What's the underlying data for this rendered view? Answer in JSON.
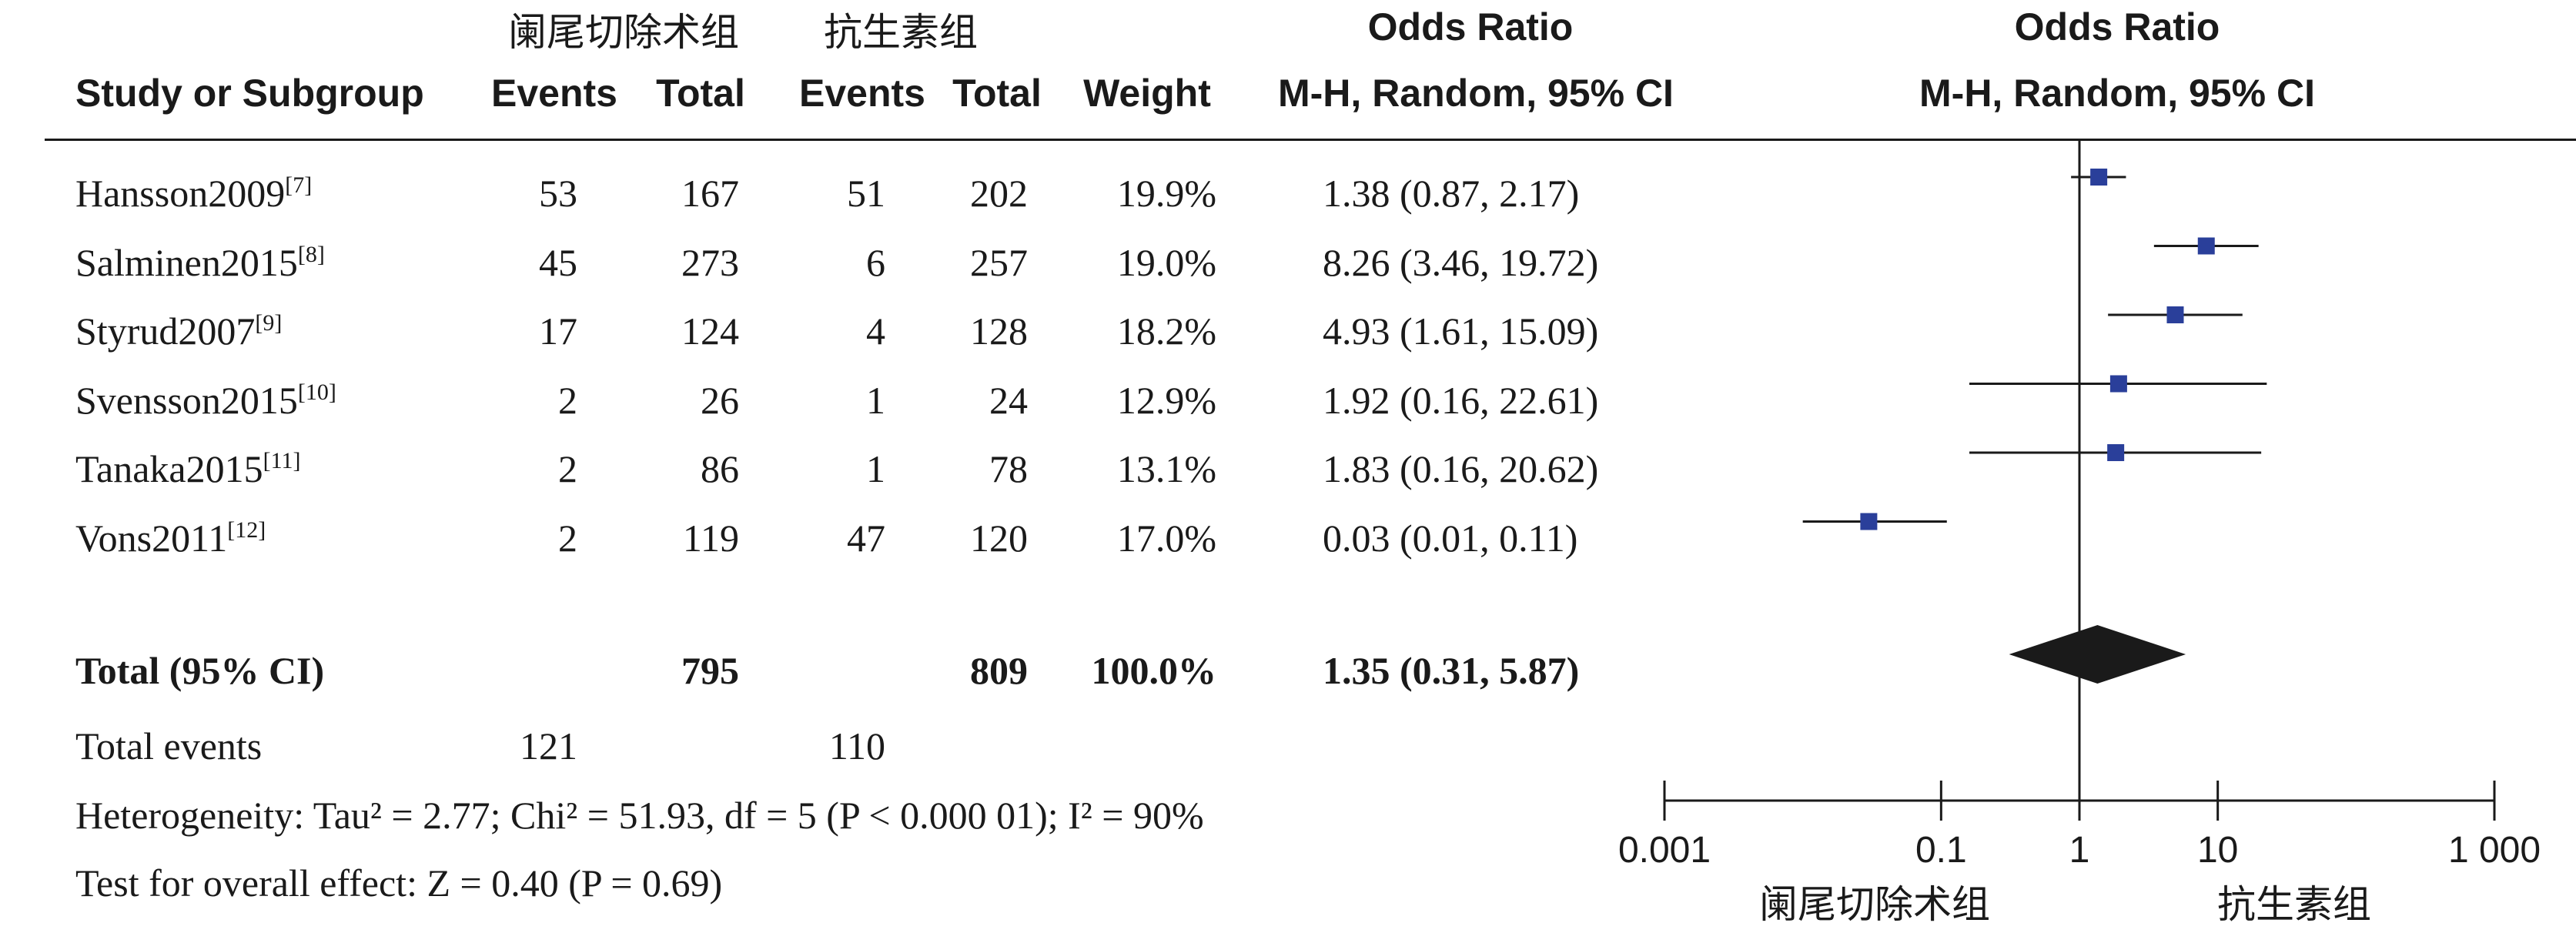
{
  "header": {
    "group1": "阑尾切除术组",
    "group2": "抗生素组",
    "odds_ratio": "Odds Ratio",
    "odds_ratio_plot": "Odds Ratio",
    "study": "Study or Subgroup",
    "events1": "Events",
    "total1": "Total",
    "events2": "Events",
    "total2": "Total",
    "weight": "Weight",
    "method": "M-H, Random, 95% CI",
    "method_plot": "M-H, Random, 95% CI"
  },
  "studies": [
    {
      "name": "Hansson2009",
      "ref": "[7]",
      "e1": "53",
      "t1": "167",
      "e2": "51",
      "t2": "202",
      "weight": "19.9%",
      "ci": "1.38 (0.87, 2.17)"
    },
    {
      "name": "Salminen2015",
      "ref": "[8]",
      "e1": "45",
      "t1": "273",
      "e2": "6",
      "t2": "257",
      "weight": "19.0%",
      "ci": "8.26 (3.46, 19.72)"
    },
    {
      "name": "Styrud2007",
      "ref": "[9]",
      "e1": "17",
      "t1": "124",
      "e2": "4",
      "t2": "128",
      "weight": "18.2%",
      "ci": "4.93 (1.61, 15.09)"
    },
    {
      "name": "Svensson2015",
      "ref": "[10]",
      "e1": "2",
      "t1": "26",
      "e2": "1",
      "t2": "24",
      "weight": "12.9%",
      "ci": "1.92 (0.16, 22.61)"
    },
    {
      "name": "Tanaka2015",
      "ref": "[11]",
      "e1": "2",
      "t1": "86",
      "e2": "1",
      "t2": "78",
      "weight": "13.1%",
      "ci": "1.83 (0.16, 20.62)"
    },
    {
      "name": "Vons2011",
      "ref": "[12]",
      "e1": "2",
      "t1": "119",
      "e2": "47",
      "t2": "120",
      "weight": "17.0%",
      "ci": "0.03 (0.01, 0.11)"
    }
  ],
  "total": {
    "label": "Total (95% CI)",
    "t1": "795",
    "t2": "809",
    "weight": "100.0%",
    "ci": "1.35 (0.31, 5.87)"
  },
  "total_events": {
    "label": "Total events",
    "e1": "121",
    "e2": "110"
  },
  "heterogeneity": "Heterogeneity: Tau² = 2.77; Chi² = 51.93, df = 5 (P < 0.000 01); I² = 90%",
  "overall_effect": "Test for overall effect: Z = 0.40 (P = 0.69)",
  "colors": {
    "study_marker": "#2a3f9a",
    "diamond": "#1a1a1a",
    "line": "#1a1a1a"
  },
  "chart_data": {
    "type": "forest",
    "scale": "log",
    "xlim": [
      0.001,
      1000
    ],
    "ticks": [
      {
        "value": 0.001,
        "label": "0.001"
      },
      {
        "value": 0.1,
        "label": "0.1"
      },
      {
        "value": 1,
        "label": "1"
      },
      {
        "value": 10,
        "label": "10"
      },
      {
        "value": 1000,
        "label": "1 000"
      }
    ],
    "favours_left": "阑尾切除术组",
    "favours_right": "抗生素组",
    "series": [
      {
        "or": 1.38,
        "lo": 0.87,
        "hi": 2.17
      },
      {
        "or": 8.26,
        "lo": 3.46,
        "hi": 19.72
      },
      {
        "or": 4.93,
        "lo": 1.61,
        "hi": 15.09
      },
      {
        "or": 1.92,
        "lo": 0.16,
        "hi": 22.61
      },
      {
        "or": 1.83,
        "lo": 0.16,
        "hi": 20.62
      },
      {
        "or": 0.03,
        "lo": 0.01,
        "hi": 0.11
      }
    ],
    "pooled": {
      "or": 1.35,
      "lo": 0.31,
      "hi": 5.87
    }
  }
}
